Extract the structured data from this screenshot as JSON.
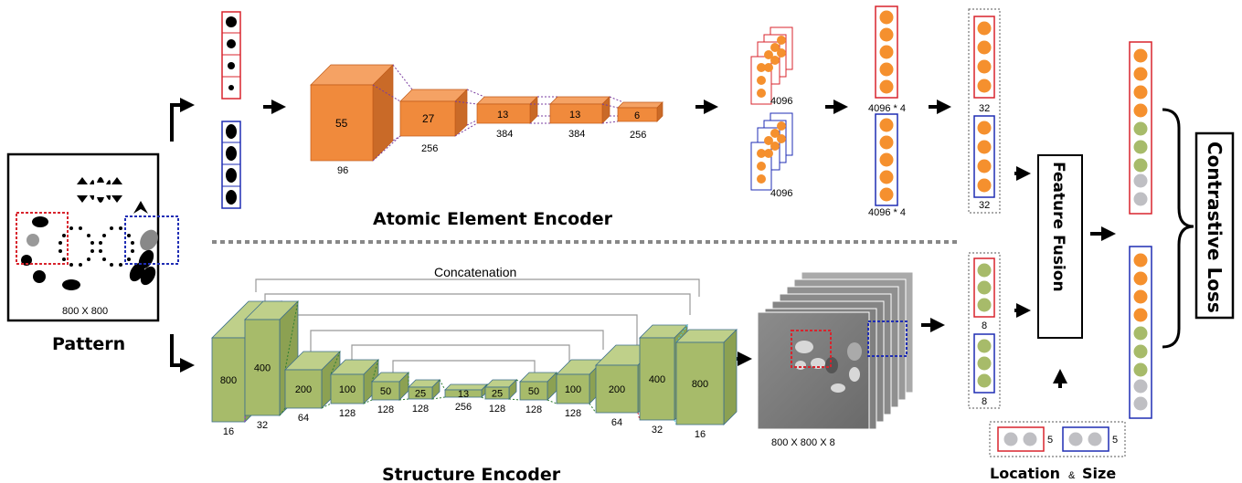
{
  "titles": {
    "atomic_encoder": "Atomic Element Encoder",
    "structure_encoder": "Structure Encoder",
    "pattern": "Pattern",
    "feature_fusion": "Feature Fusion",
    "contrastive_loss": "Contrastive Loss",
    "location_size": "Location",
    "location_amp": "&",
    "location_size2": "Size",
    "concatenation": "Concatenation"
  },
  "pattern_size": "800 X 800",
  "atomic_blocks": [
    {
      "face": "55",
      "depth": "96"
    },
    {
      "face": "27",
      "depth": "256"
    },
    {
      "face": "13",
      "depth": "384"
    },
    {
      "face": "13",
      "depth": "384"
    },
    {
      "face": "6",
      "depth": "256"
    }
  ],
  "fc_labels": {
    "stack_top": "4096",
    "stack_bottom": "4096",
    "concat_top": "4096 * 4",
    "concat_bottom": "4096 * 4",
    "reduced_top": "32",
    "reduced_bottom": "32"
  },
  "struct_blocks": [
    {
      "face": "800",
      "depth": "16"
    },
    {
      "face": "400",
      "depth": "32"
    },
    {
      "face": "200",
      "depth": "64"
    },
    {
      "face": "100",
      "depth": "128"
    },
    {
      "face": "50",
      "depth": "128"
    },
    {
      "face": "25",
      "depth": "128"
    },
    {
      "face": "13",
      "depth": "256"
    },
    {
      "face": "25",
      "depth": "128"
    },
    {
      "face": "50",
      "depth": "128"
    },
    {
      "face": "100",
      "depth": "128"
    },
    {
      "face": "200",
      "depth": "64"
    },
    {
      "face": "400",
      "depth": "32"
    },
    {
      "face": "800",
      "depth": "16"
    }
  ],
  "feature_map_size": "800 X 800 X 8",
  "struct_vec_labels": {
    "top": "8",
    "bottom": "8"
  },
  "loc_labels": {
    "red": "5",
    "blue": "5"
  },
  "colors": {
    "orange": "#F5902E",
    "green": "#A7BB6A",
    "gray": "#BFBFC3",
    "red": "#D8242D",
    "blue": "#1F2DB4"
  }
}
